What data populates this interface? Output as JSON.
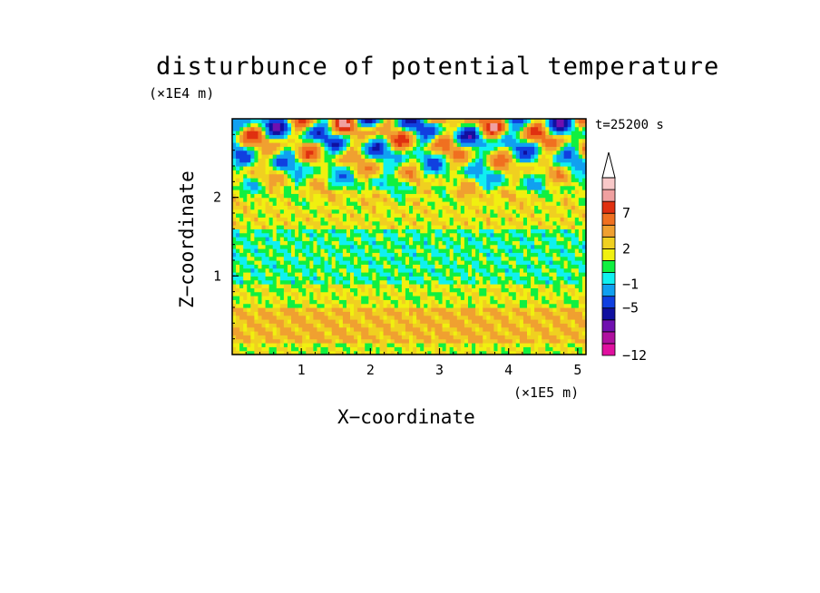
{
  "chart_data": {
    "type": "heatmap",
    "title": "disturbunce of potential temperature",
    "xlabel": "X−coordinate",
    "ylabel": "Z−coordinate",
    "x_unit": "(×1E5 m)",
    "y_unit": "(×1E4 m)",
    "annotation": "t=25200 s",
    "xlim": [
      0,
      5.12
    ],
    "ylim": [
      0,
      3.0
    ],
    "x_ticks": [
      1,
      2,
      3,
      4,
      5
    ],
    "x_tick_labels": [
      "1",
      "2",
      "3",
      "4",
      "5"
    ],
    "y_ticks": [
      1,
      2
    ],
    "y_tick_labels": [
      "1",
      "2"
    ],
    "colorbar": {
      "levels": [
        -12,
        -11,
        -9,
        -7,
        -5,
        -3,
        -1,
        0,
        1,
        2,
        3,
        5,
        7,
        9,
        11
      ],
      "tick_labels": [
        "−12",
        "−5",
        "−1",
        "2",
        "7"
      ],
      "tick_values": [
        -12,
        -5,
        -1,
        2,
        7
      ],
      "colors": [
        "#e0109f",
        "#b0109f",
        "#7010b0",
        "#1010a0",
        "#1040e0",
        "#10a0f0",
        "#10f0f0",
        "#10f040",
        "#f0f010",
        "#f0d020",
        "#f0a030",
        "#f07020",
        "#e03010",
        "#f0a0a0",
        "#f8c8c8"
      ],
      "extend": "max"
    },
    "regions": [
      {
        "z_range": [
          0,
          0.15
        ],
        "dominant": "yellow"
      },
      {
        "z_range": [
          0.15,
          0.6
        ],
        "dominant": "orange/yellow"
      },
      {
        "z_range": [
          0.6,
          0.9
        ],
        "dominant": "yellow"
      },
      {
        "z_range": [
          0.9,
          1.6
        ],
        "dominant": "green"
      },
      {
        "z_range": [
          1.6,
          2.1
        ],
        "dominant": "yellow/orange with green"
      },
      {
        "z_range": [
          2.1,
          3.0
        ],
        "dominant": "mixed orange/blue/cyan wave pattern"
      }
    ]
  }
}
